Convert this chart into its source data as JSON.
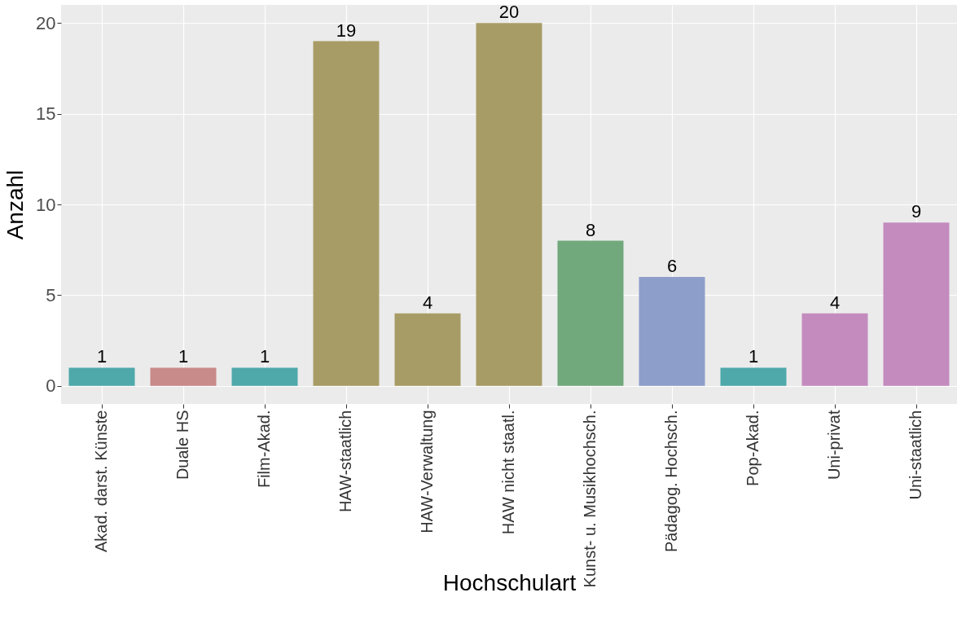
{
  "chart_data": {
    "type": "bar",
    "xlabel": "Hochschulart",
    "ylabel": "Anzahl",
    "categories": [
      "Akad. darst. Künste",
      "Duale HS",
      "Film-Akad.",
      "HAW-staatlich",
      "HAW-Verwaltung",
      "HAW nicht staatl.",
      "Kunst- u. Musikhochsch.",
      "Pädagog. Hochsch.",
      "Pop-Akad.",
      "Uni-privat",
      "Uni-staatlich"
    ],
    "values": [
      1,
      1,
      1,
      19,
      4,
      20,
      8,
      6,
      1,
      4,
      9
    ],
    "colors": [
      "#4fa9ab",
      "#c98a8a",
      "#4fa9ab",
      "#a89c66",
      "#a89c66",
      "#a89c66",
      "#72a97c",
      "#8e9ecb",
      "#4fa9ab",
      "#c48bbf",
      "#c48bbf"
    ],
    "ylim": [
      -1,
      21
    ],
    "yticks": [
      0,
      5,
      10,
      15,
      20
    ],
    "grid": true,
    "data_labels": true
  }
}
